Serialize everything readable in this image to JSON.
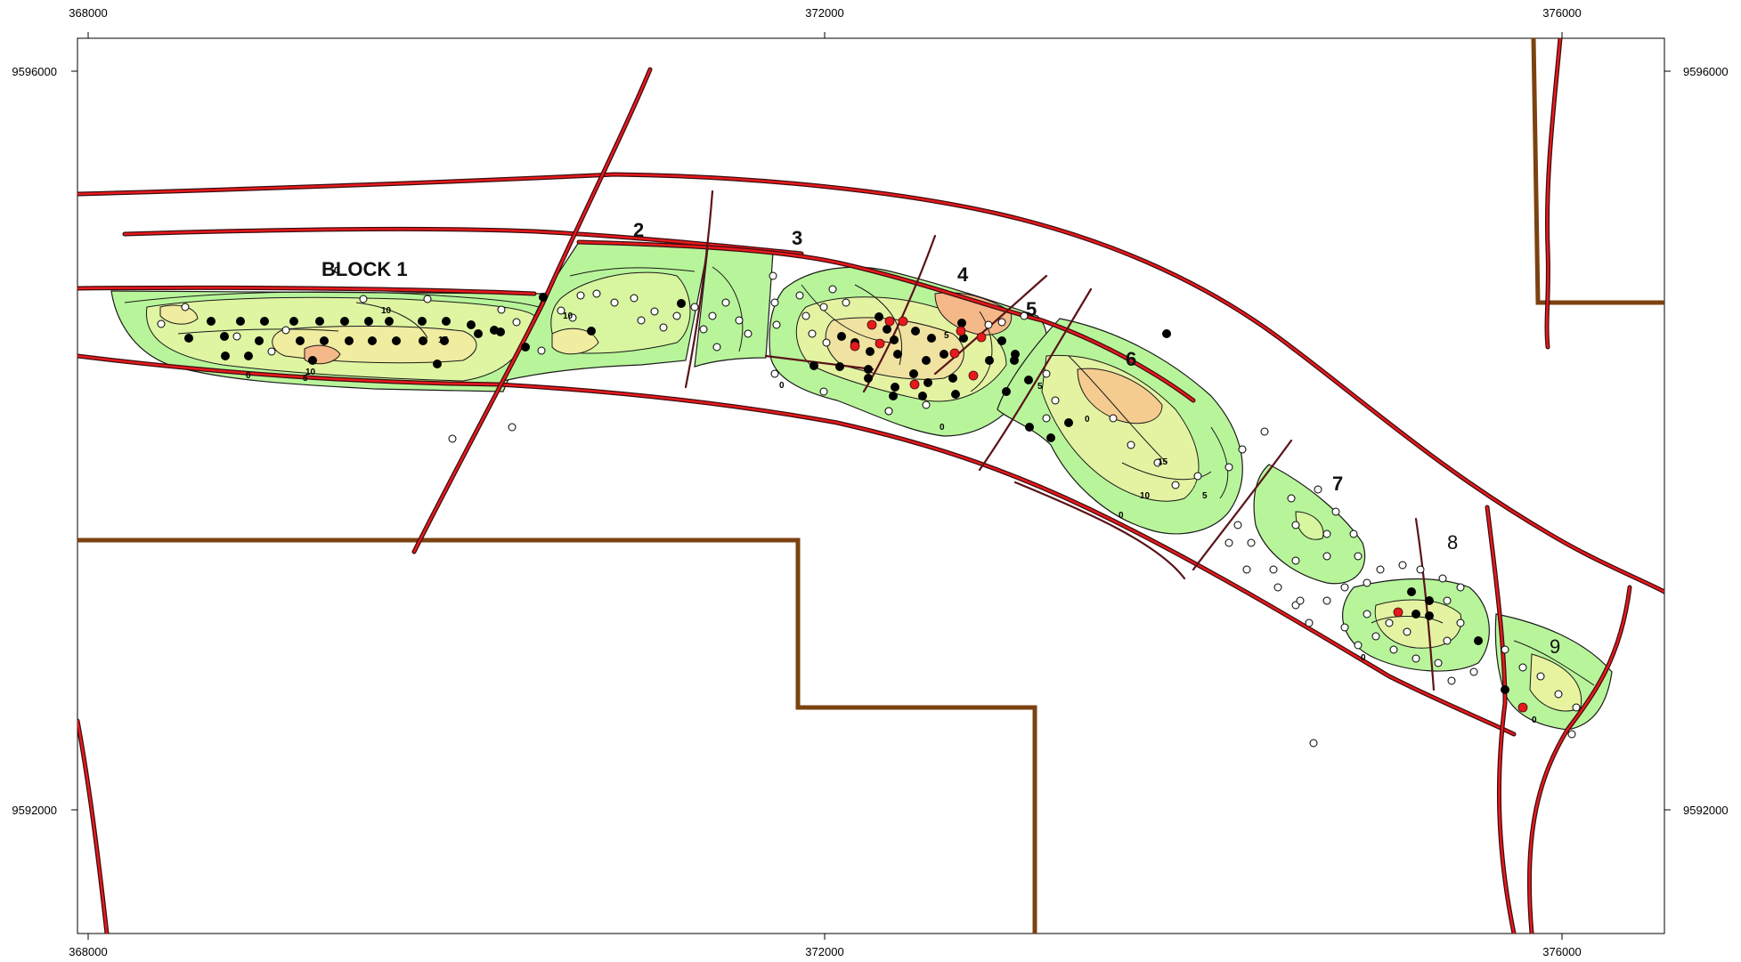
{
  "axes": {
    "x_ticks": [
      "368000",
      "372000",
      "376000"
    ],
    "y_ticks": [
      "9596000",
      "9592000"
    ]
  },
  "blocks": [
    {
      "label": "BLOCK 1"
    },
    {
      "label": "2"
    },
    {
      "label": "3"
    },
    {
      "label": "4"
    },
    {
      "label": "5"
    },
    {
      "label": "6"
    },
    {
      "label": "7"
    },
    {
      "label": "8"
    },
    {
      "label": "9"
    }
  ],
  "contour_labels": [
    "0",
    "5",
    "10",
    "15",
    "10",
    "0",
    "10",
    "0",
    "0",
    "5",
    "0",
    "5",
    "0",
    "10",
    "15",
    "5",
    "0",
    "0"
  ],
  "colors": {
    "fault_fill": "#e8191c",
    "fault_outline": "#3a0d10",
    "lease_boundary": "#7b4210",
    "contour_low": "#b8f59a",
    "contour_mid": "#f0f0a0",
    "contour_high": "#f5b888",
    "well_producing": "#000000",
    "well_injector": "#e8191c",
    "well_other": "#ffffff"
  }
}
